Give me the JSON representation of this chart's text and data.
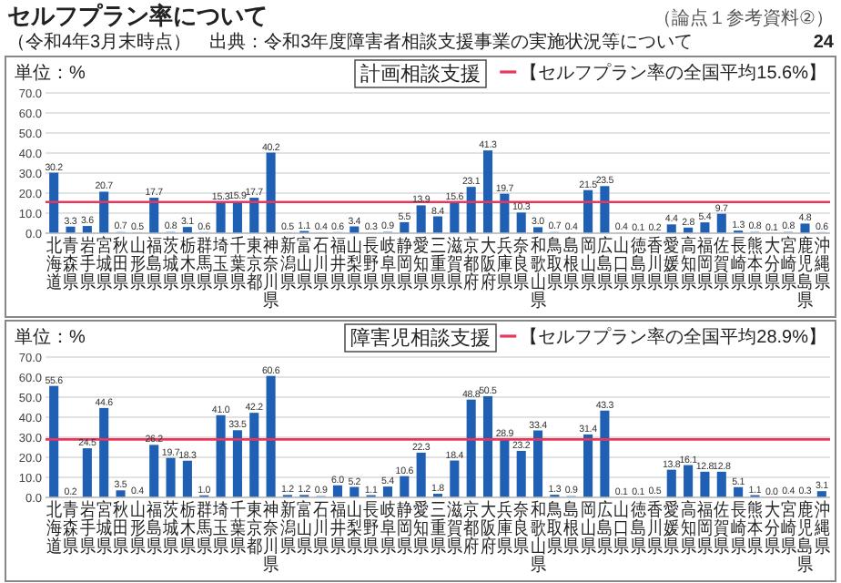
{
  "chart_data": [
    {
      "type": "bar",
      "title": "計画相談支援",
      "categories": [
        "北海道",
        "青森県",
        "岩手県",
        "宮城県",
        "秋田県",
        "山形県",
        "福島県",
        "茨城県",
        "栃木県",
        "群馬県",
        "埼玉県",
        "千葉県",
        "東京都",
        "神奈川県",
        "新潟県",
        "富山県",
        "石川県",
        "福井県",
        "山梨県",
        "長野県",
        "岐阜県",
        "静岡県",
        "愛知県",
        "三重県",
        "滋賀県",
        "京都府",
        "大阪府",
        "兵庫県",
        "奈良県",
        "和歌山県",
        "鳥取県",
        "島根県",
        "岡山県",
        "広島県",
        "山口県",
        "徳島県",
        "香川県",
        "愛媛県",
        "高知県",
        "福岡県",
        "佐賀県",
        "長崎県",
        "熊本県",
        "大分県",
        "宮崎県",
        "鹿児島県",
        "沖縄県"
      ],
      "values": [
        30.2,
        3.3,
        3.6,
        20.7,
        0.7,
        0.5,
        17.7,
        0.8,
        3.1,
        0.6,
        15.3,
        15.9,
        17.7,
        40.2,
        0.5,
        1.1,
        0.4,
        0.6,
        3.4,
        0.3,
        0.9,
        5.5,
        13.9,
        8.4,
        15.6,
        23.1,
        41.3,
        19.7,
        10.3,
        3.0,
        0.7,
        0.4,
        21.5,
        23.5,
        0.4,
        0.1,
        0.2,
        4.4,
        2.8,
        5.4,
        9.7,
        1.3,
        0.8,
        0.1,
        0.8,
        4.8,
        0.6
      ],
      "colors": [
        "#1f5fb4",
        "#1f5fb4",
        "#1f5fb4",
        "#1f5fb4",
        "#9dc3e6",
        "#9dc3e6",
        "#1f5fb4",
        "#9dc3e6",
        "#1f5fb4",
        "#9dc3e6",
        "#1f5fb4",
        "#1f5fb4",
        "#1f5fb4",
        "#1f5fb4",
        "#9dc3e6",
        "#1f5fb4",
        "#9dc3e6",
        "#9dc3e6",
        "#1f5fb4",
        "#9dc3e6",
        "#9dc3e6",
        "#1f5fb4",
        "#1f5fb4",
        "#1f5fb4",
        "#1f5fb4",
        "#1f5fb4",
        "#1f5fb4",
        "#1f5fb4",
        "#1f5fb4",
        "#1f5fb4",
        "#9dc3e6",
        "#9dc3e6",
        "#1f5fb4",
        "#1f5fb4",
        "#9dc3e6",
        "#9dc3e6",
        "#9dc3e6",
        "#1f5fb4",
        "#1f5fb4",
        "#1f5fb4",
        "#1f5fb4",
        "#1f5fb4",
        "#9dc3e6",
        "#9dc3e6",
        "#9dc3e6",
        "#1f5fb4",
        "#9dc3e6"
      ],
      "ylim": [
        0,
        70
      ],
      "yticks": [
        {
          "value": 0,
          "label": "0.0"
        },
        {
          "value": 10,
          "label": "10.0"
        },
        {
          "value": 20,
          "label": "20.0"
        },
        {
          "value": 30,
          "label": "30.0"
        },
        {
          "value": 40,
          "label": "40.0"
        },
        {
          "value": 50,
          "label": "50.0"
        },
        {
          "value": 60,
          "label": "60.0"
        },
        {
          "value": 70,
          "label": "70.0"
        }
      ],
      "grid": "y",
      "value_labels": [
        "30.2",
        "3.3",
        "3.6",
        "20.7",
        "0.7",
        "0.5",
        "17.7",
        "0.8",
        "3.1",
        "0.6",
        "15.3",
        "15.9",
        "17.7",
        "40.2",
        "0.5",
        "1.1",
        "0.4",
        "0.6",
        "3.4",
        "0.3",
        "0.9",
        "5.5",
        "13.9",
        "8.4",
        "15.6",
        "23.1",
        "41.3",
        "19.7",
        "10.3",
        "3.0",
        "0.7",
        "0.4",
        "21.5",
        "23.5",
        "0.4",
        "0.1",
        "0.2",
        "4.4",
        "2.8",
        "5.4",
        "9.7",
        "1.3",
        "0.8",
        "0.1",
        "0.8",
        "4.8",
        "0.6"
      ],
      "ref_lines": [
        {
          "axis": "y",
          "value": 15.6,
          "label": "【セルフプラン率の全国平均15.6%】",
          "color": "#e8365d"
        }
      ],
      "annotations": [
        "単位：%",
        "セルフプラン率について",
        "（令和4年3月末時点）　出典：令和3年度障害者相談支援事業の実施状況等について",
        "（論点１参考資料②）"
      ]
    },
    {
      "type": "bar",
      "title": "障害児相談支援",
      "categories": [
        "北海道",
        "青森県",
        "岩手県",
        "宮城県",
        "秋田県",
        "山形県",
        "福島県",
        "茨城県",
        "栃木県",
        "群馬県",
        "埼玉県",
        "千葉県",
        "東京都",
        "神奈川県",
        "新潟県",
        "富山県",
        "石川県",
        "福井県",
        "山梨県",
        "長野県",
        "岐阜県",
        "静岡県",
        "愛知県",
        "三重県",
        "滋賀県",
        "京都府",
        "大阪府",
        "兵庫県",
        "奈良県",
        "和歌山県",
        "鳥取県",
        "島根県",
        "岡山県",
        "広島県",
        "山口県",
        "徳島県",
        "香川県",
        "愛媛県",
        "高知県",
        "福岡県",
        "佐賀県",
        "長崎県",
        "熊本県",
        "大分県",
        "宮崎県",
        "鹿児島県",
        "沖縄県"
      ],
      "values": [
        55.6,
        0.2,
        24.5,
        44.6,
        3.5,
        0.4,
        26.2,
        19.7,
        18.3,
        1.0,
        41.0,
        33.5,
        42.2,
        60.6,
        1.2,
        1.2,
        0.9,
        6.0,
        5.2,
        1.1,
        5.4,
        10.6,
        22.3,
        1.8,
        18.4,
        48.8,
        50.5,
        28.9,
        23.2,
        33.4,
        1.3,
        0.9,
        31.4,
        43.3,
        0.1,
        0.1,
        0.5,
        13.8,
        16.1,
        12.8,
        12.8,
        5.1,
        1.1,
        0.0,
        0.4,
        0.3,
        3.1
      ],
      "colors": [
        "#1f5fb4",
        "#9dc3e6",
        "#1f5fb4",
        "#1f5fb4",
        "#1f5fb4",
        "#9dc3e6",
        "#1f5fb4",
        "#1f5fb4",
        "#1f5fb4",
        "#1f5fb4",
        "#1f5fb4",
        "#1f5fb4",
        "#1f5fb4",
        "#1f5fb4",
        "#1f5fb4",
        "#1f5fb4",
        "#9dc3e6",
        "#1f5fb4",
        "#1f5fb4",
        "#1f5fb4",
        "#1f5fb4",
        "#1f5fb4",
        "#1f5fb4",
        "#1f5fb4",
        "#1f5fb4",
        "#1f5fb4",
        "#1f5fb4",
        "#1f5fb4",
        "#1f5fb4",
        "#1f5fb4",
        "#1f5fb4",
        "#9dc3e6",
        "#1f5fb4",
        "#1f5fb4",
        "#9dc3e6",
        "#9dc3e6",
        "#9dc3e6",
        "#1f5fb4",
        "#1f5fb4",
        "#1f5fb4",
        "#1f5fb4",
        "#1f5fb4",
        "#1f5fb4",
        "#9dc3e6",
        "#9dc3e6",
        "#9dc3e6",
        "#1f5fb4"
      ],
      "ylim": [
        0,
        70
      ],
      "yticks": [
        {
          "value": 0,
          "label": "0.0"
        },
        {
          "value": 10,
          "label": "10.0"
        },
        {
          "value": 20,
          "label": "20.0"
        },
        {
          "value": 30,
          "label": "30.0"
        },
        {
          "value": 40,
          "label": "40.0"
        },
        {
          "value": 50,
          "label": "50.0"
        },
        {
          "value": 60,
          "label": "60.0"
        },
        {
          "value": 70,
          "label": "70.0"
        }
      ],
      "grid": "y",
      "value_labels": [
        "55.6",
        "0.2",
        "24.5",
        "44.6",
        "3.5",
        "0.4",
        "26.2",
        "19.7",
        "18.3",
        "1.0",
        "41.0",
        "33.5",
        "42.2",
        "60.6",
        "1.2",
        "1.2",
        "0.9",
        "6.0",
        "5.2",
        "1.1",
        "5.4",
        "10.6",
        "22.3",
        "1.8",
        "18.4",
        "48.8",
        "50.5",
        "28.9",
        "23.2",
        "33.4",
        "1.3",
        "0.9",
        "31.4",
        "43.3",
        "0.1",
        "0.1",
        "0.5",
        "13.8",
        "16.1",
        "12.8",
        "12.8",
        "5.1",
        "1.1",
        "0.0",
        "0.4",
        "0.3",
        "3.1"
      ],
      "ref_lines": [
        {
          "axis": "y",
          "value": 28.9,
          "label": "【セルフプラン率の全国平均28.9%】",
          "color": "#e8365d"
        }
      ],
      "annotations": [
        "単位：%",
        "24"
      ]
    }
  ]
}
